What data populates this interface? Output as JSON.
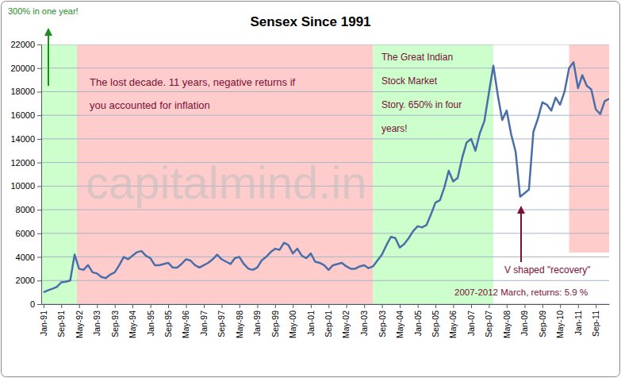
{
  "chart_data": {
    "type": "line",
    "title": "Sensex Since 1991",
    "color": "#4a6ea8",
    "grid": true,
    "watermark": "capitalmind.in",
    "xlim": [
      "1990-12",
      "2012-03"
    ],
    "xticks": [
      {
        "value": "1991-01",
        "label": "Jan-91"
      },
      {
        "value": "1991-09",
        "label": "Sep-91"
      },
      {
        "value": "1992-05",
        "label": "May-92"
      },
      {
        "value": "1993-01",
        "label": "Jan-93"
      },
      {
        "value": "1993-09",
        "label": "Sep-93"
      },
      {
        "value": "1994-05",
        "label": "May-94"
      },
      {
        "value": "1995-01",
        "label": "Jan-95"
      },
      {
        "value": "1995-09",
        "label": "Sep-95"
      },
      {
        "value": "1996-05",
        "label": "May-96"
      },
      {
        "value": "1997-01",
        "label": "Jan-97"
      },
      {
        "value": "1997-09",
        "label": "Sep-97"
      },
      {
        "value": "1998-05",
        "label": "May-98"
      },
      {
        "value": "1999-01",
        "label": "Jan-99"
      },
      {
        "value": "1999-09",
        "label": "Sep-99"
      },
      {
        "value": "2000-05",
        "label": "May-00"
      },
      {
        "value": "2001-01",
        "label": "Jan-01"
      },
      {
        "value": "2001-09",
        "label": "Sep-01"
      },
      {
        "value": "2002-05",
        "label": "May-02"
      },
      {
        "value": "2003-01",
        "label": "Jan-03"
      },
      {
        "value": "2003-09",
        "label": "Sep-03"
      },
      {
        "value": "2004-05",
        "label": "May-04"
      },
      {
        "value": "2005-01",
        "label": "Jan-05"
      },
      {
        "value": "2005-09",
        "label": "Sep-05"
      },
      {
        "value": "2006-05",
        "label": "May-06"
      },
      {
        "value": "2007-01",
        "label": "Jan-07"
      },
      {
        "value": "2007-09",
        "label": "Sep-07"
      },
      {
        "value": "2008-05",
        "label": "May-08"
      },
      {
        "value": "2009-01",
        "label": "Jan-09"
      },
      {
        "value": "2009-09",
        "label": "Sep-09"
      },
      {
        "value": "2010-05",
        "label": "May-10"
      },
      {
        "value": "2011-01",
        "label": "Jan-11"
      },
      {
        "value": "2011-09",
        "label": "Sep-11"
      }
    ],
    "ylim": [
      0,
      22000
    ],
    "yticks": [
      0,
      2000,
      4000,
      6000,
      8000,
      10000,
      12000,
      14000,
      16000,
      18000,
      20000,
      22000
    ],
    "x": [
      "1991-01",
      "1991-03",
      "1991-05",
      "1991-07",
      "1991-09",
      "1991-11",
      "1992-01",
      "1992-03",
      "1992-05",
      "1992-07",
      "1992-09",
      "1992-11",
      "1993-01",
      "1993-03",
      "1993-05",
      "1993-07",
      "1993-09",
      "1993-11",
      "1994-01",
      "1994-03",
      "1994-05",
      "1994-07",
      "1994-09",
      "1994-11",
      "1995-01",
      "1995-03",
      "1995-05",
      "1995-07",
      "1995-09",
      "1995-11",
      "1996-01",
      "1996-03",
      "1996-05",
      "1996-07",
      "1996-09",
      "1996-11",
      "1997-01",
      "1997-03",
      "1997-05",
      "1997-07",
      "1997-09",
      "1997-11",
      "1998-01",
      "1998-03",
      "1998-05",
      "1998-07",
      "1998-09",
      "1998-11",
      "1999-01",
      "1999-03",
      "1999-05",
      "1999-07",
      "1999-09",
      "1999-11",
      "2000-01",
      "2000-03",
      "2000-05",
      "2000-07",
      "2000-09",
      "2000-11",
      "2001-01",
      "2001-03",
      "2001-05",
      "2001-07",
      "2001-09",
      "2001-11",
      "2002-01",
      "2002-03",
      "2002-05",
      "2002-07",
      "2002-09",
      "2002-11",
      "2003-01",
      "2003-03",
      "2003-05",
      "2003-07",
      "2003-09",
      "2003-11",
      "2004-01",
      "2004-03",
      "2004-05",
      "2004-07",
      "2004-09",
      "2004-11",
      "2005-01",
      "2005-03",
      "2005-05",
      "2005-07",
      "2005-09",
      "2005-11",
      "2006-01",
      "2006-03",
      "2006-05",
      "2006-07",
      "2006-09",
      "2006-11",
      "2007-01",
      "2007-03",
      "2007-05",
      "2007-07",
      "2007-09",
      "2007-11",
      "2008-01",
      "2008-03",
      "2008-05",
      "2008-07",
      "2008-09",
      "2008-11",
      "2009-01",
      "2009-03",
      "2009-05",
      "2009-07",
      "2009-09",
      "2009-11",
      "2010-01",
      "2010-03",
      "2010-05",
      "2010-07",
      "2010-09",
      "2010-11",
      "2011-01",
      "2011-03",
      "2011-05",
      "2011-07",
      "2011-09",
      "2011-11",
      "2012-01",
      "2012-03"
    ],
    "values": [
      1000,
      1170,
      1300,
      1450,
      1850,
      1900,
      2000,
      4200,
      3000,
      2900,
      3300,
      2700,
      2600,
      2300,
      2200,
      2500,
      2700,
      3300,
      4000,
      3800,
      4100,
      4400,
      4500,
      4100,
      3900,
      3300,
      3300,
      3400,
      3500,
      3100,
      3100,
      3400,
      3800,
      3700,
      3300,
      3100,
      3300,
      3500,
      3800,
      4200,
      3800,
      3600,
      3400,
      3900,
      4000,
      3400,
      3000,
      2900,
      3100,
      3700,
      4000,
      4400,
      4700,
      4600,
      5200,
      5000,
      4300,
      4700,
      4100,
      3900,
      4300,
      3600,
      3500,
      3300,
      2900,
      3300,
      3400,
      3500,
      3200,
      3000,
      3000,
      3200,
      3300,
      3050,
      3200,
      3700,
      4200,
      5000,
      5700,
      5600,
      4800,
      5100,
      5600,
      6200,
      6600,
      6500,
      6700,
      7600,
      8600,
      8800,
      9900,
      11300,
      10400,
      10700,
      12400,
      13700,
      14000,
      13000,
      14500,
      15500,
      17900,
      20200,
      17700,
      15600,
      16400,
      14400,
      12900,
      9100,
      9400,
      9700,
      14600,
      15700,
      17100,
      16900,
      16400,
      17500,
      16900,
      18000,
      20000,
      20500,
      18300,
      19400,
      18500,
      18200,
      16500,
      16100,
      17200,
      17400
    ],
    "regions": [
      {
        "start": "1990-12",
        "end": "1992-04",
        "color": "#ccffcc"
      },
      {
        "start": "1992-04",
        "end": "2003-05",
        "color": "#ffcccc"
      },
      {
        "start": "2003-05",
        "end": "2007-11",
        "color": "#ccffcc"
      },
      {
        "start": "2010-09",
        "end": "2012-03",
        "color": "#ffcccc"
      }
    ],
    "annotations": [
      {
        "lines": [
          "300% in one year!"
        ],
        "color": "#1e8c1e"
      },
      {
        "lines": [
          "The lost decade. 11 years, negative returns if",
          "you accounted for inflation"
        ],
        "color": "#7a1038"
      },
      {
        "lines": [
          "The Great Indian",
          "Stock Market",
          "Story. 650% in four",
          "years!"
        ],
        "color": "#7a1038"
      },
      {
        "lines": [
          "V shaped \"recovery\""
        ],
        "color": "#7a1038"
      },
      {
        "lines": [
          "2007-2012 March, returns: 5.9 %"
        ],
        "color": "#7a1038"
      }
    ]
  }
}
